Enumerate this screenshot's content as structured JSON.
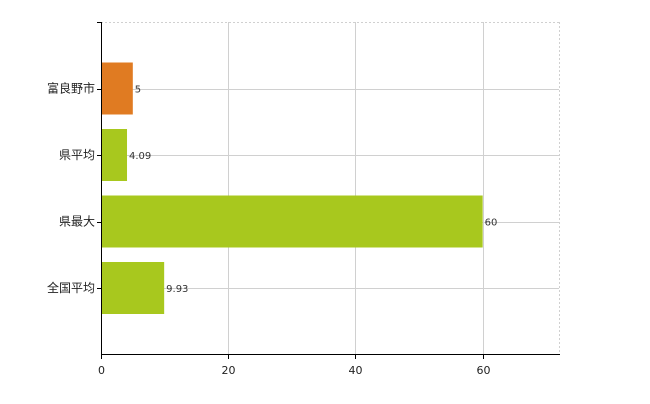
{
  "chart_data": {
    "type": "bar",
    "orientation": "horizontal",
    "categories": [
      "富良野市",
      "県平均",
      "県最大",
      "全国平均"
    ],
    "values": [
      5,
      4.09,
      60,
      9.93
    ],
    "data_labels": [
      "5",
      "4.09",
      "60",
      "9.93"
    ],
    "bar_colors": [
      "#e07b22",
      "#a8c81e",
      "#a8c81e",
      "#a8c81e"
    ],
    "xlim": [
      0,
      72
    ],
    "xticks": [
      0,
      20,
      40,
      60
    ],
    "xtick_labels": [
      "0",
      "20",
      "40",
      "60"
    ],
    "grid": true,
    "title": "",
    "xlabel": "",
    "ylabel": ""
  }
}
